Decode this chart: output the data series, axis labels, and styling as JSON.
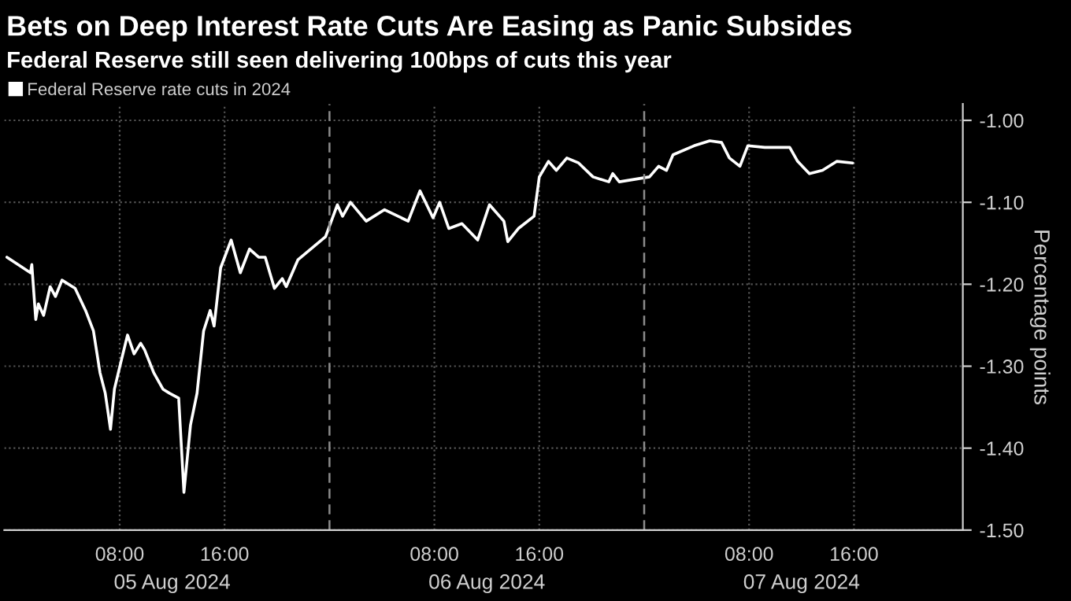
{
  "chart_data": {
    "type": "line",
    "title": "Bets on Deep Interest Rate Cuts Are Easing as Panic Subsides",
    "subtitle": "Federal Reserve still seen delivering 100bps of cuts this year",
    "ylabel": "Percentage points",
    "x": [
      "2024-08-04T23:24",
      "2024-08-05T01:12",
      "2024-08-05T01:18",
      "2024-08-05T01:36",
      "2024-08-05T01:48",
      "2024-08-05T02:12",
      "2024-08-05T02:42",
      "2024-08-05T03:06",
      "2024-08-05T03:36",
      "2024-08-05T04:36",
      "2024-08-05T05:24",
      "2024-08-05T06:00",
      "2024-08-05T06:30",
      "2024-08-05T06:54",
      "2024-08-05T07:18",
      "2024-08-05T07:36",
      "2024-08-05T08:00",
      "2024-08-05T08:36",
      "2024-08-05T09:06",
      "2024-08-05T09:36",
      "2024-08-05T09:54",
      "2024-08-05T10:36",
      "2024-08-05T11:18",
      "2024-08-05T11:48",
      "2024-08-05T12:30",
      "2024-08-05T12:54",
      "2024-08-05T13:24",
      "2024-08-05T13:54",
      "2024-08-05T14:24",
      "2024-08-05T14:54",
      "2024-08-05T15:12",
      "2024-08-05T15:42",
      "2024-08-05T16:30",
      "2024-08-05T17:12",
      "2024-08-05T17:54",
      "2024-08-05T18:36",
      "2024-08-05T19:06",
      "2024-08-05T19:48",
      "2024-08-05T20:24",
      "2024-08-05T20:42",
      "2024-08-05T21:36",
      "2024-08-05T23:42",
      "2024-08-06T00:36",
      "2024-08-06T01:00",
      "2024-08-06T01:36",
      "2024-08-06T02:48",
      "2024-08-06T04:12",
      "2024-08-06T06:00",
      "2024-08-06T06:54",
      "2024-08-06T07:54",
      "2024-08-06T08:24",
      "2024-08-06T09:06",
      "2024-08-06T10:06",
      "2024-08-06T11:18",
      "2024-08-06T12:12",
      "2024-08-06T13:18",
      "2024-08-06T13:36",
      "2024-08-06T14:24",
      "2024-08-06T15:36",
      "2024-08-06T16:00",
      "2024-08-06T16:42",
      "2024-08-06T17:18",
      "2024-08-06T18:06",
      "2024-08-06T19:00",
      "2024-08-06T20:06",
      "2024-08-06T21:18",
      "2024-08-06T21:36",
      "2024-08-06T22:06",
      "2024-08-07T00:24",
      "2024-08-07T01:06",
      "2024-08-07T01:42",
      "2024-08-07T02:12",
      "2024-08-07T03:48",
      "2024-08-07T05:00",
      "2024-08-07T05:54",
      "2024-08-07T06:30",
      "2024-08-07T07:18",
      "2024-08-07T07:54",
      "2024-08-07T09:12",
      "2024-08-07T11:06",
      "2024-08-07T11:42",
      "2024-08-07T12:36",
      "2024-08-07T13:36",
      "2024-08-07T14:42",
      "2024-08-07T15:54"
    ],
    "series": [
      {
        "name": "Federal Reserve rate cuts in 2024",
        "color": "#ffffff",
        "values": [
          -1.167,
          -1.186,
          -1.176,
          -1.243,
          -1.224,
          -1.238,
          -1.203,
          -1.215,
          -1.195,
          -1.205,
          -1.232,
          -1.257,
          -1.308,
          -1.333,
          -1.377,
          -1.328,
          -1.301,
          -1.262,
          -1.285,
          -1.272,
          -1.28,
          -1.308,
          -1.328,
          -1.333,
          -1.339,
          -1.454,
          -1.372,
          -1.333,
          -1.257,
          -1.232,
          -1.251,
          -1.18,
          -1.146,
          -1.186,
          -1.157,
          -1.167,
          -1.167,
          -1.205,
          -1.193,
          -1.203,
          -1.17,
          -1.142,
          -1.103,
          -1.117,
          -1.1,
          -1.123,
          -1.109,
          -1.123,
          -1.086,
          -1.119,
          -1.1,
          -1.132,
          -1.126,
          -1.146,
          -1.103,
          -1.123,
          -1.148,
          -1.132,
          -1.117,
          -1.069,
          -1.05,
          -1.061,
          -1.046,
          -1.052,
          -1.069,
          -1.075,
          -1.065,
          -1.075,
          -1.069,
          -1.056,
          -1.061,
          -1.042,
          -1.031,
          -1.025,
          -1.027,
          -1.046,
          -1.056,
          -1.031,
          -1.033,
          -1.033,
          -1.05,
          -1.065,
          -1.061,
          -1.05,
          -1.052
        ]
      }
    ],
    "xlim": [
      "2024-08-04T23:12",
      "2024-08-08T00:18"
    ],
    "xticks": [
      {
        "value": "2024-08-05T08:00",
        "label": "08:00"
      },
      {
        "value": "2024-08-05T16:00",
        "label": "16:00"
      },
      {
        "value": "2024-08-06T08:00",
        "label": "08:00"
      },
      {
        "value": "2024-08-06T16:00",
        "label": "16:00"
      },
      {
        "value": "2024-08-07T08:00",
        "label": "08:00"
      },
      {
        "value": "2024-08-07T16:00",
        "label": "16:00"
      }
    ],
    "ylim": [
      -1.5,
      -0.98
    ],
    "yticks": [
      {
        "value": -1.5,
        "label": "-1.50"
      },
      {
        "value": -1.4,
        "label": "-1.40"
      },
      {
        "value": -1.3,
        "label": "-1.30"
      },
      {
        "value": -1.2,
        "label": "-1.20"
      },
      {
        "value": -1.1,
        "label": "-1.10"
      },
      {
        "value": -1.0,
        "label": "-1.00"
      }
    ],
    "ref_lines": [
      {
        "axis": "x",
        "value": "2024-08-06T00:00",
        "color": "#8c8c8c",
        "line_style": "dashed"
      },
      {
        "axis": "x",
        "value": "2024-08-07T00:00",
        "color": "#8c8c8c",
        "line_style": "dashed"
      }
    ],
    "annotations": [
      "05 Aug 2024",
      "06 Aug 2024",
      "07 Aug 2024"
    ],
    "grid": true,
    "legend": "top left",
    "line_style": "solid"
  }
}
